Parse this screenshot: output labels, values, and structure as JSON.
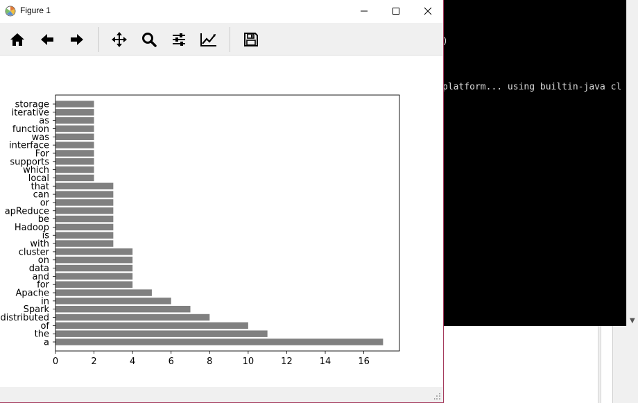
{
  "window": {
    "title": "Figure 1"
  },
  "toolbar": {
    "tools": [
      {
        "name": "home",
        "icon": "home-icon"
      },
      {
        "name": "back",
        "icon": "arrow-left-icon"
      },
      {
        "name": "forward",
        "icon": "arrow-right-icon"
      },
      {
        "name": "pan",
        "icon": "move-icon"
      },
      {
        "name": "zoom",
        "icon": "magnifier-icon"
      },
      {
        "name": "configure-subplots",
        "icon": "sliders-icon"
      },
      {
        "name": "edit-axes",
        "icon": "line-chart-icon"
      },
      {
        "name": "save",
        "icon": "floppy-disk-icon"
      }
    ]
  },
  "terminal": {
    "lines": [
      ")",
      "platform... using builtin-java cl"
    ]
  },
  "colors": {
    "bar": "#808080",
    "terminal_bg": "#000000",
    "window_border": "#a43a5c"
  },
  "chart_data": {
    "type": "bar",
    "orientation": "horizontal",
    "categories": [
      "a",
      "the",
      "of",
      "distributed",
      "Spark",
      "in",
      "Apache",
      "for",
      "and",
      "data",
      "on",
      "cluster",
      "with",
      "is",
      "Hadoop",
      "be",
      "apReduce",
      "or",
      "can",
      "that",
      "local",
      "which",
      "supports",
      "For",
      "interface",
      "was",
      "function",
      "as",
      "iterative",
      "storage"
    ],
    "values": [
      17,
      11,
      10,
      8,
      7,
      6,
      5,
      4,
      4,
      4,
      4,
      4,
      3,
      3,
      3,
      3,
      3,
      3,
      3,
      3,
      2,
      2,
      2,
      2,
      2,
      2,
      2,
      2,
      2,
      2
    ],
    "xticks": [
      0,
      2,
      4,
      6,
      8,
      10,
      12,
      14,
      16
    ],
    "xlim": [
      0,
      17.85
    ],
    "title": "",
    "xlabel": "",
    "ylabel": ""
  }
}
